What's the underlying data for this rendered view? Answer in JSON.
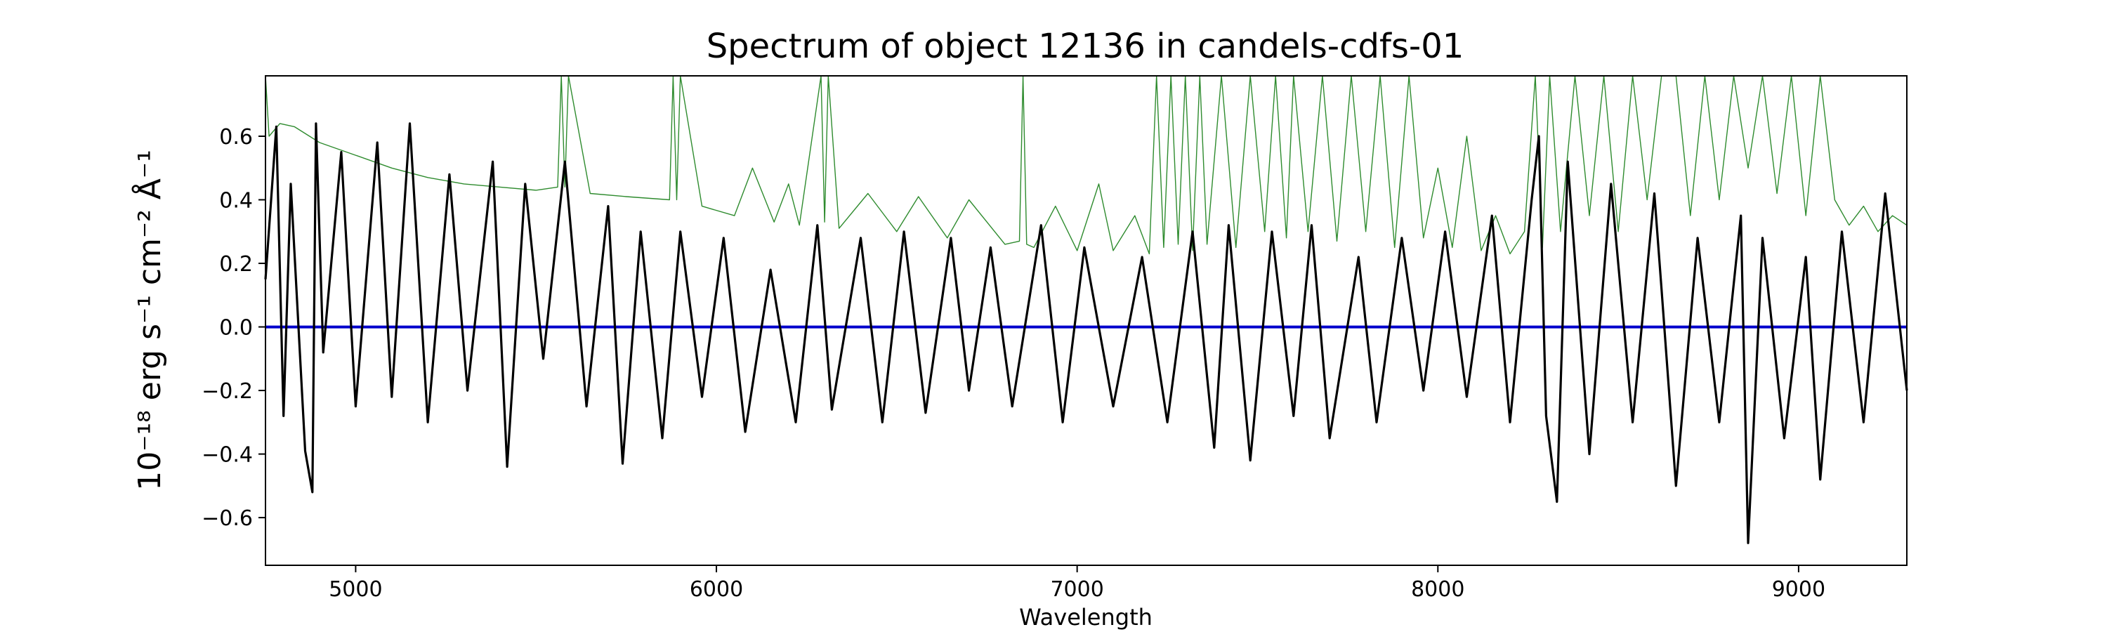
{
  "chart_data": {
    "type": "line",
    "title": "Spectrum of object 12136 in candels-cdfs-01",
    "xlabel": "Wavelength",
    "ylabel": "10⁻¹⁸ erg s⁻¹ cm⁻² Å⁻¹",
    "xlim": [
      4750,
      9300
    ],
    "ylim": [
      -0.75,
      0.79
    ],
    "xticks": [
      5000,
      6000,
      7000,
      8000,
      9000
    ],
    "yticks": [
      -0.6,
      -0.4,
      -0.2,
      0.0,
      0.2,
      0.4,
      0.6
    ],
    "ytick_labels": [
      "−0.6",
      "−0.4",
      "−0.2",
      "0.0",
      "0.2",
      "0.4",
      "0.6"
    ],
    "grid": false,
    "legend": "none",
    "series": [
      {
        "role": "flux",
        "color": "#000000",
        "x": [
          4750,
          4780,
          4800,
          4820,
          4860,
          4880,
          4890,
          4910,
          4960,
          5000,
          5060,
          5100,
          5150,
          5200,
          5260,
          5310,
          5380,
          5420,
          5470,
          5520,
          5580,
          5640,
          5700,
          5740,
          5790,
          5850,
          5900,
          5960,
          6020,
          6080,
          6150,
          6220,
          6280,
          6320,
          6400,
          6460,
          6520,
          6580,
          6650,
          6700,
          6760,
          6820,
          6900,
          6960,
          7020,
          7100,
          7180,
          7250,
          7320,
          7380,
          7420,
          7480,
          7540,
          7600,
          7650,
          7700,
          7780,
          7830,
          7900,
          7960,
          8020,
          8080,
          8150,
          8200,
          8260,
          8280,
          8300,
          8330,
          8360,
          8420,
          8480,
          8540,
          8600,
          8620,
          8660,
          8720,
          8780,
          8840,
          8860,
          8900,
          8960,
          9020,
          9060,
          9120,
          9180,
          9240,
          9300
        ],
        "y": [
          0.15,
          0.63,
          -0.28,
          0.45,
          -0.39,
          -0.52,
          0.64,
          -0.08,
          0.55,
          -0.25,
          0.58,
          -0.22,
          0.64,
          -0.3,
          0.48,
          -0.2,
          0.52,
          -0.44,
          0.45,
          -0.1,
          0.52,
          -0.25,
          0.38,
          -0.43,
          0.3,
          -0.35,
          0.3,
          -0.22,
          0.28,
          -0.33,
          0.18,
          -0.3,
          0.32,
          -0.26,
          0.28,
          -0.3,
          0.3,
          -0.27,
          0.28,
          -0.2,
          0.25,
          -0.25,
          0.32,
          -0.3,
          0.25,
          -0.25,
          0.22,
          -0.3,
          0.3,
          -0.38,
          0.32,
          -0.42,
          0.3,
          -0.28,
          0.32,
          -0.35,
          0.22,
          -0.3,
          0.28,
          -0.2,
          0.3,
          -0.22,
          0.35,
          -0.3,
          0.4,
          0.6,
          -0.28,
          -0.55,
          0.52,
          -0.4,
          0.45,
          -0.3,
          0.42,
          0.12,
          -0.5,
          0.28,
          -0.3,
          0.35,
          -0.68,
          0.28,
          -0.35,
          0.22,
          -0.48,
          0.3,
          -0.3,
          0.42,
          -0.2
        ]
      },
      {
        "role": "model",
        "color": "#2e8b2e",
        "x": [
          4750,
          4760,
          4790,
          4830,
          4900,
          5000,
          5100,
          5200,
          5300,
          5400,
          5500,
          5560,
          5570,
          5580,
          5590,
          5650,
          5750,
          5870,
          5880,
          5890,
          5900,
          5960,
          6050,
          6100,
          6160,
          6200,
          6230,
          6290,
          6300,
          6310,
          6340,
          6420,
          6500,
          6560,
          6640,
          6700,
          6800,
          6840,
          6850,
          6860,
          6880,
          6940,
          7000,
          7060,
          7100,
          7160,
          7200,
          7220,
          7240,
          7260,
          7280,
          7300,
          7320,
          7340,
          7360,
          7400,
          7440,
          7480,
          7520,
          7550,
          7580,
          7600,
          7640,
          7680,
          7720,
          7760,
          7800,
          7840,
          7880,
          7920,
          7960,
          8000,
          8040,
          8080,
          8120,
          8160,
          8200,
          8240,
          8270,
          8290,
          8310,
          8340,
          8380,
          8420,
          8460,
          8500,
          8540,
          8580,
          8620,
          8660,
          8700,
          8740,
          8780,
          8820,
          8860,
          8900,
          8940,
          8980,
          9020,
          9060,
          9100,
          9140,
          9180,
          9220,
          9260,
          9300
        ],
        "y": [
          0.79,
          0.6,
          0.64,
          0.63,
          0.58,
          0.54,
          0.5,
          0.47,
          0.45,
          0.44,
          0.43,
          0.44,
          0.79,
          0.44,
          0.79,
          0.42,
          0.41,
          0.4,
          0.79,
          0.4,
          0.79,
          0.38,
          0.35,
          0.5,
          0.33,
          0.45,
          0.32,
          0.79,
          0.33,
          0.79,
          0.31,
          0.42,
          0.3,
          0.41,
          0.28,
          0.4,
          0.26,
          0.27,
          0.79,
          0.26,
          0.25,
          0.38,
          0.24,
          0.45,
          0.24,
          0.35,
          0.23,
          0.79,
          0.25,
          0.79,
          0.26,
          0.79,
          0.24,
          0.79,
          0.26,
          0.79,
          0.25,
          0.79,
          0.3,
          0.79,
          0.28,
          0.79,
          0.3,
          0.79,
          0.27,
          0.79,
          0.3,
          0.79,
          0.25,
          0.79,
          0.28,
          0.5,
          0.25,
          0.6,
          0.24,
          0.35,
          0.23,
          0.3,
          0.79,
          0.25,
          0.79,
          0.3,
          0.79,
          0.35,
          0.79,
          0.3,
          0.79,
          0.4,
          0.79,
          0.79,
          0.35,
          0.79,
          0.4,
          0.79,
          0.5,
          0.79,
          0.42,
          0.79,
          0.35,
          0.79,
          0.4,
          0.32,
          0.38,
          0.3,
          0.35,
          0.32
        ]
      },
      {
        "role": "zero-line",
        "color": "#0000cc",
        "x": [
          4750,
          9300
        ],
        "y": [
          0.0,
          0.0
        ]
      }
    ]
  }
}
